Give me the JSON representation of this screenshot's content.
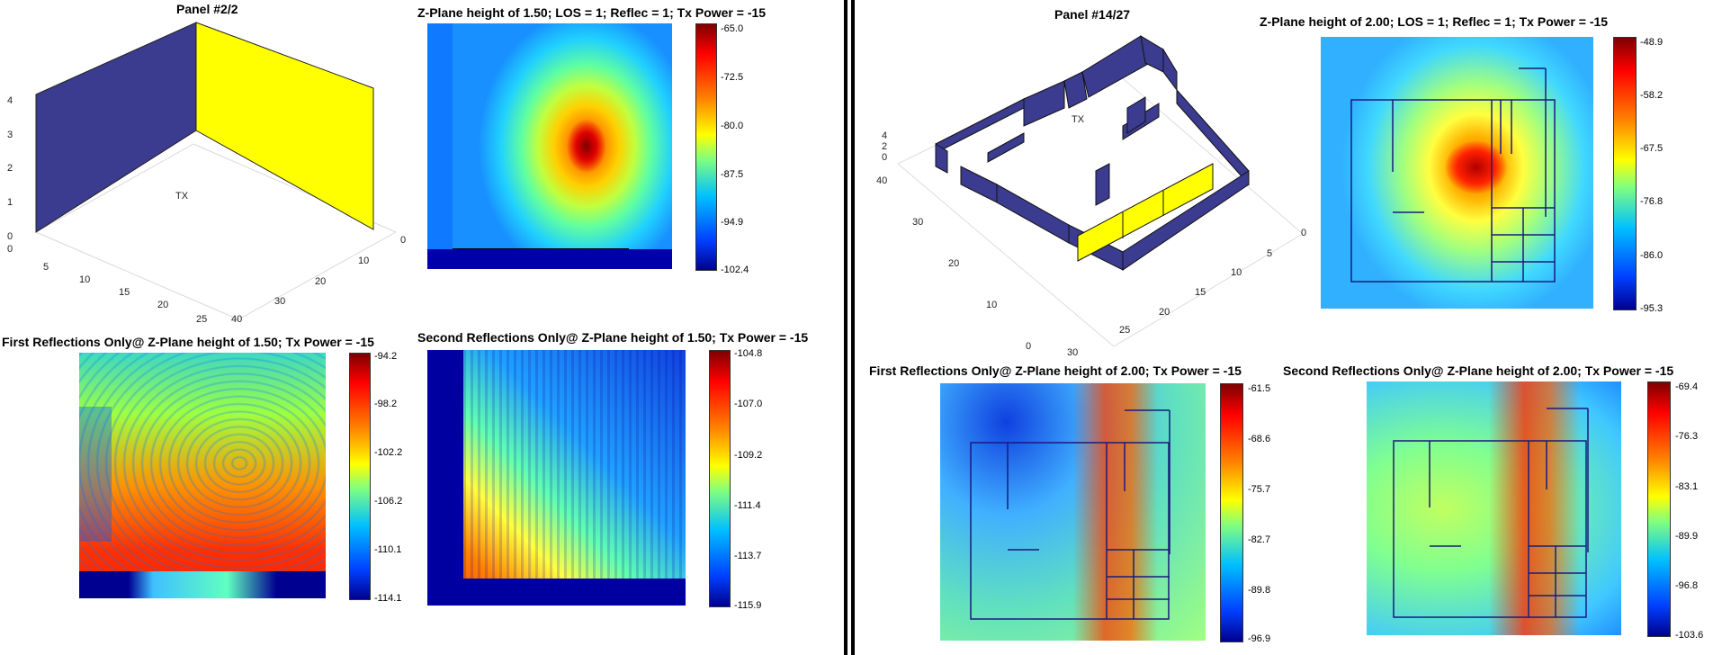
{
  "colors": {
    "wall": "#3b3b8f",
    "wall_highlight": "#ffff00",
    "divider": "#000000",
    "floorplan_line": "#1a1a7a"
  },
  "left": {
    "panel_title": "Panel #2/2",
    "los_title": "Z-Plane height of 1.50; LOS = 1; Reflec = 1; Tx Power = -15",
    "first_title": "First Reflections Only@ Z-Plane height of 1.50; Tx Power = -15",
    "second_title": "Second Reflections Only@ Z-Plane height of 1.50; Tx Power = -15",
    "tx_label": "TX",
    "z_ticks": [
      "0",
      "1",
      "2",
      "3",
      "4"
    ],
    "x_ticks": [
      "0",
      "5",
      "10",
      "15",
      "20",
      "25"
    ],
    "y_ticks": [
      "0",
      "10",
      "20",
      "30",
      "40"
    ]
  },
  "right": {
    "panel_title": "Panel #14/27",
    "los_title": "Z-Plane height of 2.00; LOS = 1; Reflec = 1; Tx Power = -15",
    "first_title": "First Reflections Only@ Z-Plane height of 2.00; Tx Power = -15",
    "second_title": "Second Reflections Only@ Z-Plane height of 2.00; Tx Power = -15",
    "tx_label": "TX",
    "z_ticks": [
      "0",
      "2",
      "4"
    ],
    "x_ticks": [
      "0",
      "5",
      "10",
      "15",
      "20",
      "25",
      "30"
    ],
    "y_ticks": [
      "0",
      "10",
      "20",
      "30",
      "40"
    ]
  },
  "chart_data": [
    {
      "type": "heatmap",
      "title": "Panel #2/2",
      "note": "3D room wall view",
      "tx_label": "TX"
    },
    {
      "type": "heatmap",
      "title": "Z-Plane height of 1.50; LOS = 1; Reflec = 1; Tx Power = -15",
      "colorbar_ticks": [
        "-65.0",
        "-72.5",
        "-80.0",
        "-87.5",
        "-94.9",
        "-102.4"
      ],
      "clim": [
        -102.4,
        -65.0
      ]
    },
    {
      "type": "heatmap",
      "title": "First Reflections Only@ Z-Plane height of 1.50; Tx Power = -15",
      "colorbar_ticks": [
        "-94.2",
        "-98.2",
        "-102.2",
        "-106.2",
        "-110.1",
        "-114.1"
      ],
      "clim": [
        -114.1,
        -94.2
      ]
    },
    {
      "type": "heatmap",
      "title": "Second Reflections Only@ Z-Plane height of 1.50; Tx Power = -15",
      "colorbar_ticks": [
        "-104.8",
        "-107.0",
        "-109.2",
        "-111.4",
        "-113.7",
        "-115.9"
      ],
      "clim": [
        -115.9,
        -104.8
      ]
    },
    {
      "type": "heatmap",
      "title": "Panel #14/27",
      "note": "3D floorplan view",
      "tx_label": "TX"
    },
    {
      "type": "heatmap",
      "title": "Z-Plane height of 2.00; LOS = 1; Reflec = 1; Tx Power = -15",
      "colorbar_ticks": [
        "-48.9",
        "-58.2",
        "-67.5",
        "-76.8",
        "-86.0",
        "-95.3"
      ],
      "clim": [
        -95.3,
        -48.9
      ]
    },
    {
      "type": "heatmap",
      "title": "First Reflections Only@ Z-Plane height of 2.00; Tx Power = -15",
      "colorbar_ticks": [
        "-61.5",
        "-68.6",
        "-75.7",
        "-82.7",
        "-89.8",
        "-96.9"
      ],
      "clim": [
        -96.9,
        -61.5
      ]
    },
    {
      "type": "heatmap",
      "title": "Second Reflections Only@ Z-Plane height of 2.00; Tx Power = -15",
      "colorbar_ticks": [
        "-69.4",
        "-76.3",
        "-83.1",
        "-89.9",
        "-96.8",
        "-103.6"
      ],
      "clim": [
        -103.6,
        -69.4
      ]
    }
  ]
}
